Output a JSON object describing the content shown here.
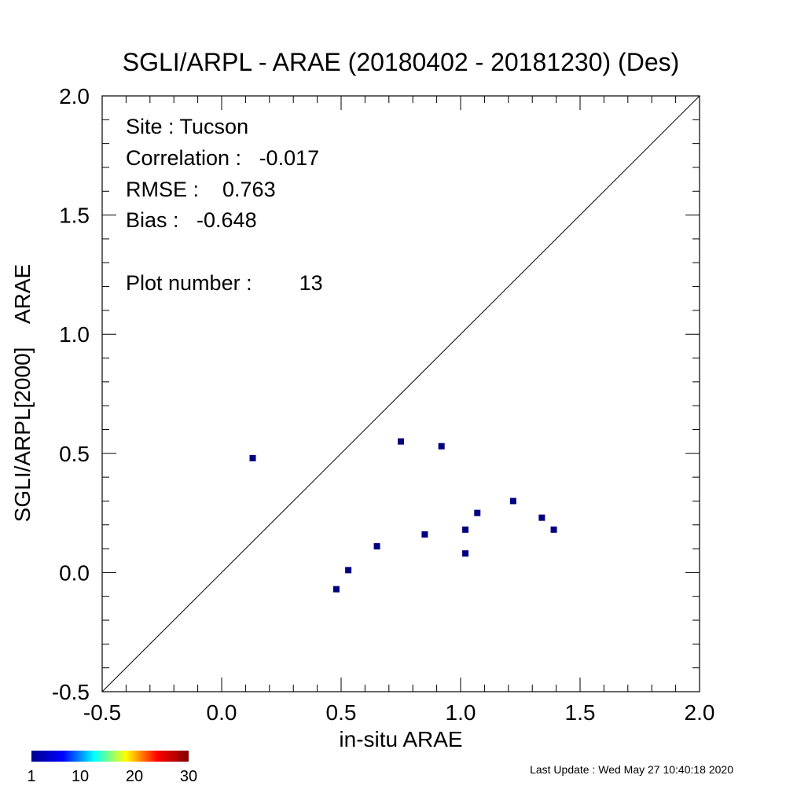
{
  "chart_data": {
    "type": "scatter",
    "title": "SGLI/ARPL - ARAE (20180402 - 20181230) (Des)",
    "xlabel": "in-situ ARAE",
    "ylabel": "SGLI/ARPL[2000]    ARAE",
    "xlim": [
      -0.5,
      2.0
    ],
    "ylim": [
      -0.5,
      2.0
    ],
    "x_ticks": [
      "-0.5",
      "0.0",
      "0.5",
      "1.0",
      "1.5",
      "2.0"
    ],
    "y_ticks": [
      "-0.5",
      "0.0",
      "0.5",
      "1.0",
      "1.5",
      "2.0"
    ],
    "reference_line": "1:1",
    "grid": false,
    "point_color": "#000080",
    "points": [
      {
        "x": 0.13,
        "y": 0.48
      },
      {
        "x": 0.48,
        "y": -0.07
      },
      {
        "x": 0.53,
        "y": 0.01
      },
      {
        "x": 0.65,
        "y": 0.11
      },
      {
        "x": 0.75,
        "y": 0.55
      },
      {
        "x": 0.85,
        "y": 0.16
      },
      {
        "x": 0.92,
        "y": 0.53
      },
      {
        "x": 1.02,
        "y": 0.18
      },
      {
        "x": 1.02,
        "y": 0.08
      },
      {
        "x": 1.07,
        "y": 0.25
      },
      {
        "x": 1.22,
        "y": 0.3
      },
      {
        "x": 1.34,
        "y": 0.23
      },
      {
        "x": 1.39,
        "y": 0.18
      }
    ],
    "stats": {
      "site": "Site : Tucson",
      "correlation": "Correlation :   -0.017",
      "rmse": "RMSE :    0.763",
      "bias": "Bias :   -0.648",
      "plot_number": "Plot number :        13"
    },
    "colorbar": {
      "colors": [
        "#00008f",
        "#0000ff",
        "#00ffff",
        "#ffff00",
        "#ff0000",
        "#800000"
      ],
      "labels": [
        "1",
        "10",
        "20",
        "30"
      ],
      "values": [
        1,
        10,
        20,
        30
      ]
    }
  },
  "footer": {
    "last_update": "Last Update : Wed May 27 10:40:18 2020"
  }
}
